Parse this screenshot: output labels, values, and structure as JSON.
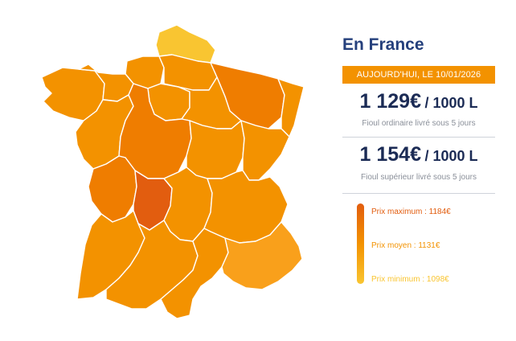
{
  "panel": {
    "title": "En France",
    "date_badge": "AUJOURD'HUI, LE 10/01/2026",
    "ordinary": {
      "price": "1 129€",
      "unit": "/ 1000 L",
      "label": "Fioul ordinaire livré sous 5 jours"
    },
    "superior": {
      "price": "1 154€",
      "unit": "/ 1000 L",
      "label": "Fioul supérieur livré sous 5 jours"
    }
  },
  "legend": {
    "max": {
      "label": "Prix maximum : 1184€",
      "color": "#e25d0f"
    },
    "avg": {
      "label": "Prix moyen : 1131€",
      "color": "#f39200"
    },
    "min": {
      "label": "Prix minimum : 1098€",
      "color": "#f9c531"
    }
  },
  "colors": {
    "accent_orange": "#f39200",
    "dark_orange": "#e25d0f",
    "medium_orange": "#ef7d00",
    "yellow": "#f9c531",
    "title_blue": "#25407c"
  }
}
